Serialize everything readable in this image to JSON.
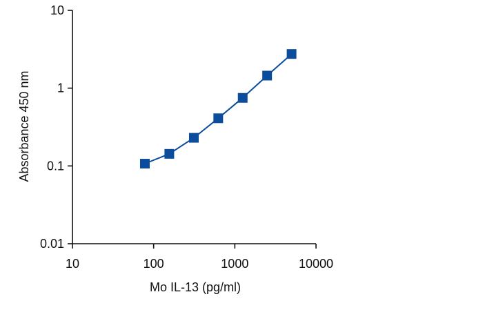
{
  "chart_data": {
    "type": "line",
    "title": "",
    "xlabel": "Mo IL-13 (pg/ml)",
    "ylabel": "Absorbance 450 nm",
    "xscale": "log",
    "yscale": "log",
    "xlim": [
      10,
      10000
    ],
    "ylim": [
      0.01,
      10
    ],
    "x_ticks": [
      10,
      100,
      1000,
      10000
    ],
    "x_tick_labels": [
      "10",
      "100",
      "1000",
      "10000"
    ],
    "y_ticks": [
      0.01,
      0.1,
      1,
      10
    ],
    "y_tick_labels": [
      "0.01",
      "0.1",
      "1",
      "10"
    ],
    "grid": false,
    "legend": "none",
    "series": [
      {
        "marker": "square",
        "color": "#0b4d9c",
        "x": [
          78,
          156,
          313,
          625,
          1250,
          2500,
          5000
        ],
        "y": [
          0.107,
          0.143,
          0.23,
          0.41,
          0.75,
          1.45,
          2.75
        ]
      }
    ]
  }
}
